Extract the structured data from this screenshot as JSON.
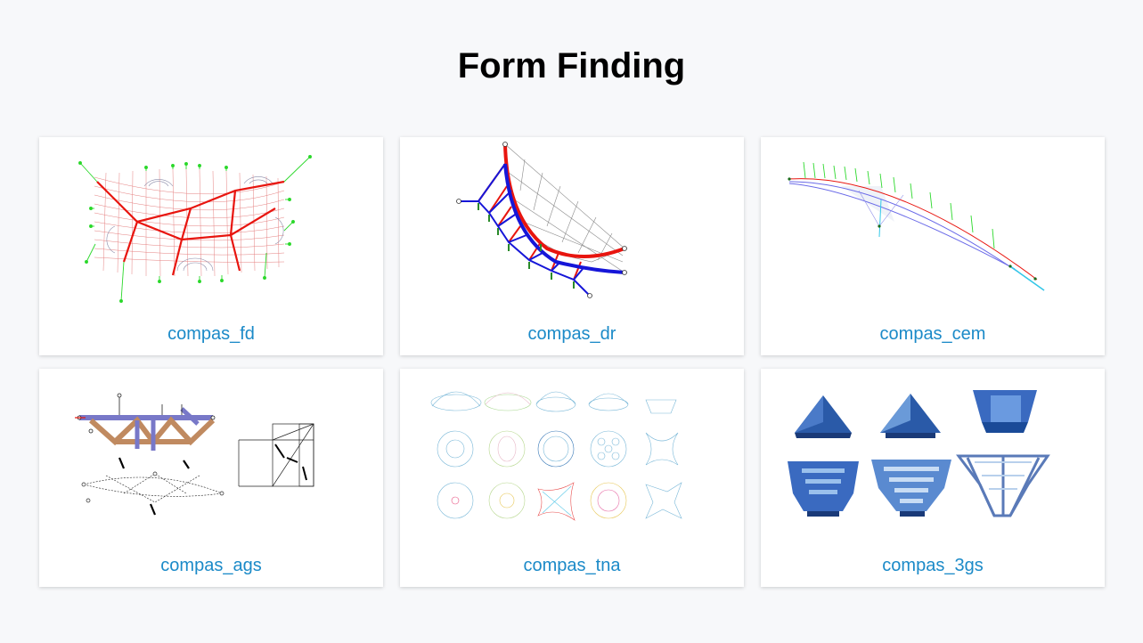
{
  "page": {
    "title": "Form Finding"
  },
  "cards": [
    {
      "label": "compas_fd"
    },
    {
      "label": "compas_dr"
    },
    {
      "label": "compas_cem"
    },
    {
      "label": "compas_ags"
    },
    {
      "label": "compas_tna"
    },
    {
      "label": "compas_3gs"
    }
  ],
  "colors": {
    "background": "#f7f8fa",
    "card": "#ffffff",
    "link": "#1b8ac8",
    "force_red": "#e8150f",
    "load_green": "#2ad82a",
    "member_blue": "#1616d8"
  }
}
